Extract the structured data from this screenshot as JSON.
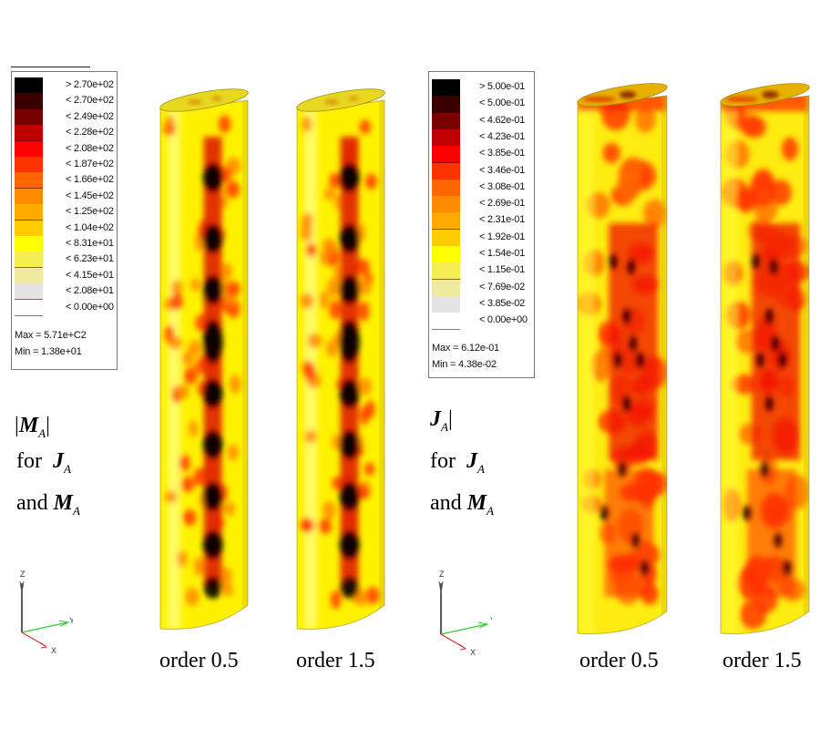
{
  "panels": [
    {
      "id": "M",
      "legend": {
        "levels": [
          {
            "label": "> 2.70e+02",
            "color": "#000000"
          },
          {
            "label": "< 2.70e+02",
            "color": "#3a0000"
          },
          {
            "label": "< 2.49e+02",
            "color": "#7a0000"
          },
          {
            "label": "< 2.28e+02",
            "color": "#c00000"
          },
          {
            "label": "< 2.08e+02",
            "color": "#ff0000"
          },
          {
            "label": "< 1.87e+02",
            "color": "#ff3300"
          },
          {
            "label": "< 1.66e+02",
            "color": "#ff6600"
          },
          {
            "label": "< 1.45e+02",
            "color": "#ff8c00"
          },
          {
            "label": "< 1.25e+02",
            "color": "#ffaa00"
          },
          {
            "label": "< 1.04e+02",
            "color": "#ffcc00"
          },
          {
            "label": "< 8.31e+01",
            "color": "#ffff00"
          },
          {
            "label": "< 6.23e+01",
            "color": "#f4ee50"
          },
          {
            "label": "< 4.15e+01",
            "color": "#f0eaa0"
          },
          {
            "label": "< 2.08e+01",
            "color": "#e4e4e4"
          },
          {
            "label": "< 0.00e+00",
            "color": "#ffffff"
          }
        ],
        "max": "Max = 5.71e+C2",
        "min": "Min = 1.38e+01"
      },
      "quantity": {
        "bar_left": "|",
        "symbol": "M",
        "sub": "A",
        "bar_right": "|"
      },
      "for_line": {
        "prefix": "for",
        "symbol": "J",
        "sub": "A"
      },
      "and_line": {
        "prefix": "and",
        "symbol": "M",
        "sub": "A"
      },
      "axes": {
        "z": "Z",
        "y": "Y",
        "x": "X"
      },
      "cylinders": [
        {
          "caption": "order 0.5",
          "pattern": "M"
        },
        {
          "caption": "order 1.5",
          "pattern": "M"
        }
      ]
    },
    {
      "id": "J",
      "legend": {
        "levels": [
          {
            "label": "> 5.00e-01",
            "color": "#000000"
          },
          {
            "label": "< 5.00e-01",
            "color": "#3a0000"
          },
          {
            "label": "< 4.62e-01",
            "color": "#7a0000"
          },
          {
            "label": "< 4.23e-01",
            "color": "#c00000"
          },
          {
            "label": "< 3.85e-01",
            "color": "#ff0000"
          },
          {
            "label": "< 3.46e-01",
            "color": "#ff3300"
          },
          {
            "label": "< 3.08e-01",
            "color": "#ff6600"
          },
          {
            "label": "< 2.69e-01",
            "color": "#ff8c00"
          },
          {
            "label": "< 2.31e-01",
            "color": "#ffaa00"
          },
          {
            "label": "< 1.92e-01",
            "color": "#ffcc00"
          },
          {
            "label": "< 1.54e-01",
            "color": "#ffff00"
          },
          {
            "label": "< 1.15e-01",
            "color": "#f4ee50"
          },
          {
            "label": "< 7.69e-02",
            "color": "#f0eaa0"
          },
          {
            "label": "< 3.85e-02",
            "color": "#e4e4e4"
          },
          {
            "label": "< 0.00e+00",
            "color": "#ffffff"
          }
        ],
        "max": "Max = 6.12e-01",
        "min": "Min = 4.38e-02"
      },
      "quantity": {
        "bar_left": "",
        "symbol": "J",
        "sub": "A",
        "bar_right": "|"
      },
      "for_line": {
        "prefix": "for",
        "symbol": "J",
        "sub": "A"
      },
      "and_line": {
        "prefix": "and",
        "symbol": "M",
        "sub": "A"
      },
      "axes": {
        "z": "Z",
        "y": "Y",
        "x": "X"
      },
      "cylinders": [
        {
          "caption": "order 0.5",
          "pattern": "J"
        },
        {
          "caption": "order 1.5",
          "pattern": "J"
        }
      ]
    }
  ]
}
